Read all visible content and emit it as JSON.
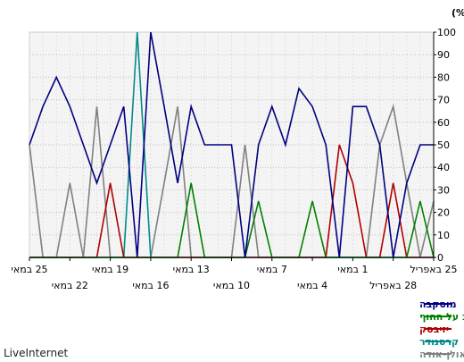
{
  "chart_data": {
    "type": "line",
    "ylabel": "חלק (%)",
    "ylim": [
      0,
      100
    ],
    "yticks": [
      0,
      10,
      20,
      30,
      40,
      50,
      60,
      70,
      80,
      90,
      100
    ],
    "x_axis_direction": "right-to-left",
    "x_tick_labels": [
      {
        "index": 0,
        "label": "25 באפריל"
      },
      {
        "index": 3,
        "label": "28 באפריל"
      },
      {
        "index": 6,
        "label": "1 במאי"
      },
      {
        "index": 9,
        "label": "4 במאי"
      },
      {
        "index": 12,
        "label": "7 במאי"
      },
      {
        "index": 15,
        "label": "10 במאי"
      },
      {
        "index": 18,
        "label": "13 במאי"
      },
      {
        "index": 21,
        "label": "16 במאי"
      },
      {
        "index": 24,
        "label": "19 במאי"
      },
      {
        "index": 27,
        "label": "22 במאי"
      },
      {
        "index": 30,
        "label": "25 במאי"
      }
    ],
    "grid": true,
    "legend_position": "bottom-right",
    "series": [
      {
        "name": "מוסקבה",
        "color": "#000080",
        "values": [
          50,
          50,
          33,
          0,
          50,
          67,
          67,
          0,
          50,
          67,
          75,
          50,
          67,
          50,
          0,
          50,
          50,
          50,
          67,
          33,
          67,
          100,
          0,
          67,
          50,
          33,
          50,
          67,
          80,
          67,
          50
        ]
      },
      {
        "name": "רוסטוב על החוף",
        "color": "#008000",
        "values": [
          0,
          25,
          0,
          0,
          0,
          0,
          0,
          0,
          0,
          25,
          0,
          0,
          0,
          25,
          0,
          0,
          0,
          0,
          33,
          0,
          0,
          0,
          0,
          0,
          0,
          0,
          0,
          0,
          0,
          0,
          0
        ]
      },
      {
        "name": "יזיבסק",
        "color": "#b00000",
        "values": [
          0,
          0,
          0,
          33,
          0,
          0,
          33,
          50,
          0,
          0,
          0,
          0,
          0,
          0,
          0,
          0,
          0,
          0,
          0,
          0,
          0,
          0,
          0,
          0,
          33,
          0,
          0,
          0,
          0,
          0,
          0
        ]
      },
      {
        "name": "קרסנודר",
        "color": "#008b8b",
        "values": [
          0,
          0,
          0,
          0,
          0,
          0,
          0,
          0,
          0,
          0,
          0,
          0,
          0,
          0,
          0,
          0,
          0,
          0,
          0,
          0,
          0,
          0,
          100,
          0,
          0,
          0,
          0,
          0,
          0,
          0,
          0
        ]
      },
      {
        "name": "אולן-אודה",
        "color": "#808080",
        "values": [
          25,
          0,
          33,
          67,
          50,
          0,
          0,
          0,
          0,
          0,
          0,
          0,
          0,
          0,
          50,
          0,
          0,
          0,
          0,
          67,
          33,
          0,
          0,
          0,
          0,
          67,
          0,
          33,
          0,
          0,
          50
        ]
      }
    ]
  },
  "footer": {
    "brand": "LiveInternet"
  }
}
